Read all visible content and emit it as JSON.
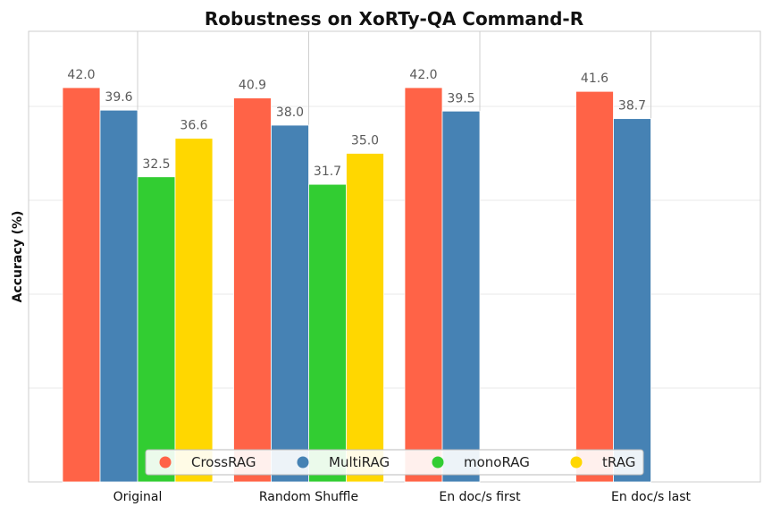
{
  "chart_data": {
    "type": "bar",
    "title": "Robustness on XoRTy-QA Command-R",
    "xlabel": "",
    "ylabel": "Accuracy (%)",
    "ylim": [
      0,
      48
    ],
    "yticks_shown": false,
    "grid": true,
    "legend_position": "bottom-center",
    "categories": [
      "Original",
      "Random Shuffle",
      "En doc/s first",
      "En doc/s last"
    ],
    "series": [
      {
        "name": "CrossRAG",
        "color": "#ff6347",
        "values": [
          42.0,
          40.9,
          42.0,
          41.6
        ]
      },
      {
        "name": "MultiRAG",
        "color": "#4682b4",
        "values": [
          39.6,
          38.0,
          39.5,
          38.7
        ]
      },
      {
        "name": "monoRAG",
        "color": "#32cd32",
        "values": [
          32.5,
          31.7,
          null,
          null
        ]
      },
      {
        "name": "tRAG",
        "color": "#ffd700",
        "values": [
          36.6,
          35.0,
          null,
          null
        ]
      }
    ]
  }
}
